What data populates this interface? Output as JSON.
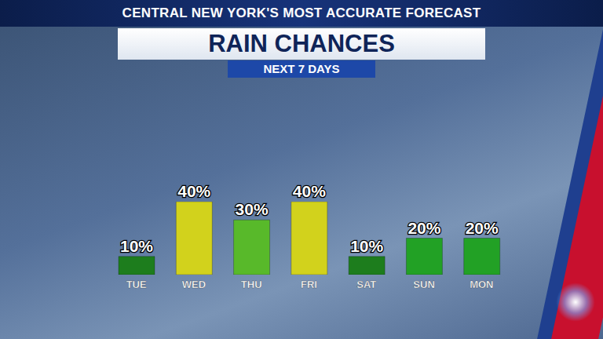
{
  "chart_data": {
    "type": "bar",
    "annotations": [
      "CENTRAL NEW YORK'S MOST ACCURATE FORECAST"
    ],
    "title": "RAIN CHANCES",
    "subtitle": "NEXT 7 DAYS",
    "categories": [
      "TUE",
      "WED",
      "THU",
      "FRI",
      "SAT",
      "SUN",
      "MON"
    ],
    "values": [
      10,
      40,
      30,
      40,
      10,
      20,
      20
    ],
    "value_labels": [
      "10%",
      "40%",
      "30%",
      "40%",
      "10%",
      "20%",
      "20%"
    ],
    "colors": [
      "#1d7d1d",
      "#d2d21c",
      "#58b92a",
      "#d2d21c",
      "#1d7d1d",
      "#22a125",
      "#22a125"
    ],
    "ylim": [
      0,
      40
    ],
    "grid": false,
    "data_labels": true,
    "tick_labels": "x"
  }
}
